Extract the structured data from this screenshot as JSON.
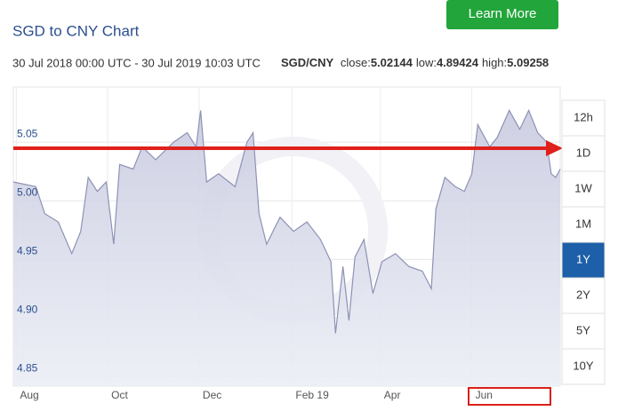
{
  "header": {
    "title": "SGD to CNY Chart",
    "period": "30 Jul 2018 00:00 UTC - 30 Jul 2019 10:03 UTC",
    "pair": "SGD/CNY",
    "stats": [
      {
        "label": "close:",
        "value": "5.02144"
      },
      {
        "label": "low:",
        "value": "4.89424"
      },
      {
        "label": "high:",
        "value": "5.09258"
      }
    ]
  },
  "learn_more": "Learn More",
  "range_buttons": [
    "12h",
    "1D",
    "1W",
    "1M",
    "1Y",
    "2Y",
    "5Y",
    "10Y"
  ],
  "active_range": "1Y",
  "chart_data": {
    "type": "area",
    "color": "#8e92b4",
    "x": [
      0,
      15,
      21,
      30,
      39,
      45,
      50,
      56,
      62,
      67,
      71,
      80,
      86,
      95,
      107,
      116,
      122,
      125,
      129,
      137,
      148,
      156,
      160,
      164,
      169,
      178,
      187,
      196,
      205,
      212,
      215,
      220,
      224,
      228,
      234,
      240,
      246,
      255,
      264,
      273,
      279,
      282,
      288,
      295,
      301,
      306,
      310,
      318,
      323,
      331,
      338,
      344,
      350,
      356,
      359,
      362,
      365
    ],
    "values": [
      5.016,
      5.012,
      4.989,
      4.982,
      4.955,
      4.974,
      5.02,
      5.008,
      5.016,
      4.963,
      5.031,
      5.027,
      5.046,
      5.035,
      5.05,
      5.058,
      5.046,
      5.077,
      5.016,
      5.023,
      5.012,
      5.05,
      5.058,
      4.989,
      4.963,
      4.986,
      4.974,
      4.982,
      4.967,
      4.948,
      4.887,
      4.944,
      4.898,
      4.952,
      4.967,
      4.921,
      4.948,
      4.955,
      4.944,
      4.94,
      4.925,
      4.993,
      5.02,
      5.012,
      5.008,
      5.023,
      5.065,
      5.046,
      5.054,
      5.077,
      5.061,
      5.077,
      5.058,
      5.05,
      5.023,
      5.02,
      5.027
    ],
    "xlim": [
      0,
      365
    ],
    "xticks": [
      {
        "value": 2,
        "label": "Aug"
      },
      {
        "value": 63,
        "label": "Oct"
      },
      {
        "value": 124,
        "label": "Dec"
      },
      {
        "value": 186,
        "label": "Feb 19"
      },
      {
        "value": 245,
        "label": "Apr"
      },
      {
        "value": 306,
        "label": "Jun"
      }
    ],
    "ylim": [
      4.842,
      5.097
    ],
    "yticks": [
      4.85,
      {
        "value": 4.9,
        "label": "4.90"
      },
      4.95,
      {
        "value": 5.0,
        "label": "5.00"
      },
      5.05
    ],
    "grid": true
  }
}
